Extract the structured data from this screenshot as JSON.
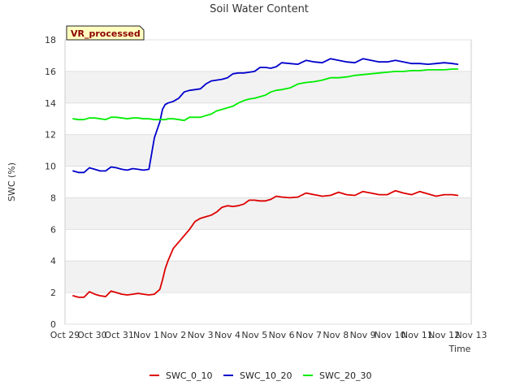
{
  "chart_data": {
    "type": "line",
    "title": "Soil Water Content",
    "xlabel": "Time",
    "ylabel": "SWC (%)",
    "badge": "VR_processed",
    "xlim": [
      0,
      15
    ],
    "ylim": [
      0,
      18
    ],
    "yticks": [
      0,
      2,
      4,
      6,
      8,
      10,
      12,
      14,
      16,
      18
    ],
    "xtick_labels": [
      "Oct 29",
      "Oct 30",
      "Oct 31",
      "Nov 1",
      "Nov 2",
      "Nov 3",
      "Nov 4",
      "Nov 5",
      "Nov 6",
      "Nov 7",
      "Nov 8",
      "Nov 9",
      "Nov 10",
      "Nov 11",
      "Nov 12",
      "Nov 13"
    ],
    "series": [
      {
        "name": "SWC_0_10",
        "color": "#dd0000",
        "x": [
          0.3,
          0.5,
          0.7,
          0.9,
          1.1,
          1.3,
          1.5,
          1.7,
          1.9,
          2.1,
          2.3,
          2.5,
          2.7,
          2.9,
          3.1,
          3.3,
          3.5,
          3.6,
          3.7,
          3.8,
          3.9,
          4.0,
          4.2,
          4.4,
          4.6,
          4.8,
          5.0,
          5.2,
          5.4,
          5.6,
          5.8,
          6.0,
          6.2,
          6.4,
          6.6,
          6.8,
          7.0,
          7.2,
          7.4,
          7.6,
          7.8,
          8.0,
          8.3,
          8.6,
          8.9,
          9.2,
          9.5,
          9.8,
          10.1,
          10.4,
          10.7,
          11.0,
          11.3,
          11.6,
          11.9,
          12.2,
          12.5,
          12.8,
          13.1,
          13.4,
          13.7,
          14.0,
          14.3,
          14.5
        ],
        "values": [
          1.8,
          1.7,
          1.7,
          2.05,
          1.9,
          1.8,
          1.75,
          2.1,
          2.0,
          1.9,
          1.85,
          1.9,
          1.95,
          1.9,
          1.85,
          1.9,
          2.2,
          2.8,
          3.5,
          4.0,
          4.4,
          4.8,
          5.2,
          5.6,
          6.0,
          6.5,
          6.7,
          6.8,
          6.9,
          7.1,
          7.4,
          7.5,
          7.45,
          7.5,
          7.6,
          7.85,
          7.85,
          7.8,
          7.8,
          7.9,
          8.1,
          8.05,
          8.0,
          8.05,
          8.3,
          8.2,
          8.1,
          8.15,
          8.35,
          8.2,
          8.15,
          8.4,
          8.3,
          8.2,
          8.2,
          8.45,
          8.3,
          8.2,
          8.4,
          8.25,
          8.1,
          8.2,
          8.2,
          8.15
        ]
      },
      {
        "name": "SWC_10_20",
        "color": "#0000cc",
        "x": [
          0.3,
          0.5,
          0.7,
          0.9,
          1.1,
          1.3,
          1.5,
          1.7,
          1.9,
          2.1,
          2.3,
          2.5,
          2.7,
          2.9,
          3.1,
          3.3,
          3.5,
          3.6,
          3.7,
          3.8,
          3.9,
          4.0,
          4.2,
          4.4,
          4.6,
          4.8,
          5.0,
          5.2,
          5.4,
          5.6,
          5.8,
          6.0,
          6.2,
          6.4,
          6.6,
          6.8,
          7.0,
          7.2,
          7.4,
          7.6,
          7.8,
          8.0,
          8.3,
          8.6,
          8.9,
          9.2,
          9.5,
          9.8,
          10.1,
          10.4,
          10.7,
          11.0,
          11.3,
          11.6,
          11.9,
          12.2,
          12.5,
          12.8,
          13.1,
          13.4,
          13.7,
          14.0,
          14.3,
          14.5
        ],
        "values": [
          9.7,
          9.6,
          9.6,
          9.9,
          9.8,
          9.7,
          9.7,
          9.95,
          9.9,
          9.8,
          9.75,
          9.85,
          9.8,
          9.75,
          9.8,
          11.8,
          12.8,
          13.6,
          13.9,
          14.0,
          14.05,
          14.1,
          14.3,
          14.7,
          14.8,
          14.85,
          14.9,
          15.2,
          15.4,
          15.45,
          15.5,
          15.6,
          15.85,
          15.9,
          15.9,
          15.95,
          16.0,
          16.25,
          16.25,
          16.2,
          16.3,
          16.55,
          16.5,
          16.45,
          16.7,
          16.6,
          16.55,
          16.8,
          16.7,
          16.6,
          16.55,
          16.8,
          16.7,
          16.6,
          16.6,
          16.7,
          16.6,
          16.5,
          16.5,
          16.45,
          16.5,
          16.55,
          16.5,
          16.45
        ]
      },
      {
        "name": "SWC_20_30",
        "color": "#00ee00",
        "x": [
          0.3,
          0.5,
          0.7,
          0.9,
          1.1,
          1.3,
          1.5,
          1.7,
          1.9,
          2.1,
          2.3,
          2.5,
          2.7,
          2.9,
          3.1,
          3.3,
          3.5,
          3.6,
          3.7,
          3.8,
          3.9,
          4.0,
          4.2,
          4.4,
          4.6,
          4.8,
          5.0,
          5.2,
          5.4,
          5.6,
          5.8,
          6.0,
          6.2,
          6.4,
          6.6,
          6.8,
          7.0,
          7.2,
          7.4,
          7.6,
          7.8,
          8.0,
          8.3,
          8.6,
          8.9,
          9.2,
          9.5,
          9.8,
          10.1,
          10.4,
          10.7,
          11.0,
          11.3,
          11.6,
          11.9,
          12.2,
          12.5,
          12.8,
          13.1,
          13.4,
          13.7,
          14.0,
          14.3,
          14.5
        ],
        "values": [
          13.0,
          12.95,
          12.95,
          13.05,
          13.05,
          13.0,
          12.95,
          13.1,
          13.1,
          13.05,
          13.0,
          13.05,
          13.05,
          13.0,
          13.0,
          12.95,
          12.95,
          12.95,
          12.95,
          13.0,
          13.0,
          13.0,
          12.95,
          12.9,
          13.1,
          13.1,
          13.1,
          13.2,
          13.3,
          13.5,
          13.6,
          13.7,
          13.8,
          14.0,
          14.15,
          14.25,
          14.3,
          14.4,
          14.5,
          14.7,
          14.8,
          14.85,
          14.95,
          15.2,
          15.3,
          15.35,
          15.45,
          15.6,
          15.6,
          15.65,
          15.75,
          15.8,
          15.85,
          15.9,
          15.95,
          16.0,
          16.0,
          16.05,
          16.05,
          16.1,
          16.1,
          16.1,
          16.15,
          16.15
        ]
      }
    ]
  }
}
